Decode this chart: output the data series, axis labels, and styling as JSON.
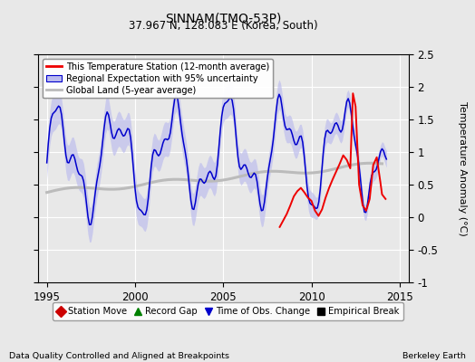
{
  "title": "SINNAM(TMQ-53P)",
  "subtitle": "37.967 N, 128.083 E (Korea, South)",
  "ylabel": "Temperature Anomaly (°C)",
  "xlabel_left": "Data Quality Controlled and Aligned at Breakpoints",
  "xlabel_right": "Berkeley Earth",
  "ylim": [
    -1.0,
    2.5
  ],
  "xlim": [
    1994.5,
    2015.5
  ],
  "xticks": [
    1995,
    2000,
    2005,
    2010,
    2015
  ],
  "yticks": [
    -1,
    -0.5,
    0,
    0.5,
    1,
    1.5,
    2,
    2.5
  ],
  "red_color": "#EE0000",
  "blue_color": "#0000CC",
  "blue_fill": "#BBBBEE",
  "gray_color": "#BBBBBB",
  "bg_color": "#E8E8E8",
  "legend_items": [
    "This Temperature Station (12-month average)",
    "Regional Expectation with 95% uncertainty",
    "Global Land (5-year average)"
  ],
  "marker_legend": [
    "Station Move",
    "Record Gap",
    "Time of Obs. Change",
    "Empirical Break"
  ]
}
